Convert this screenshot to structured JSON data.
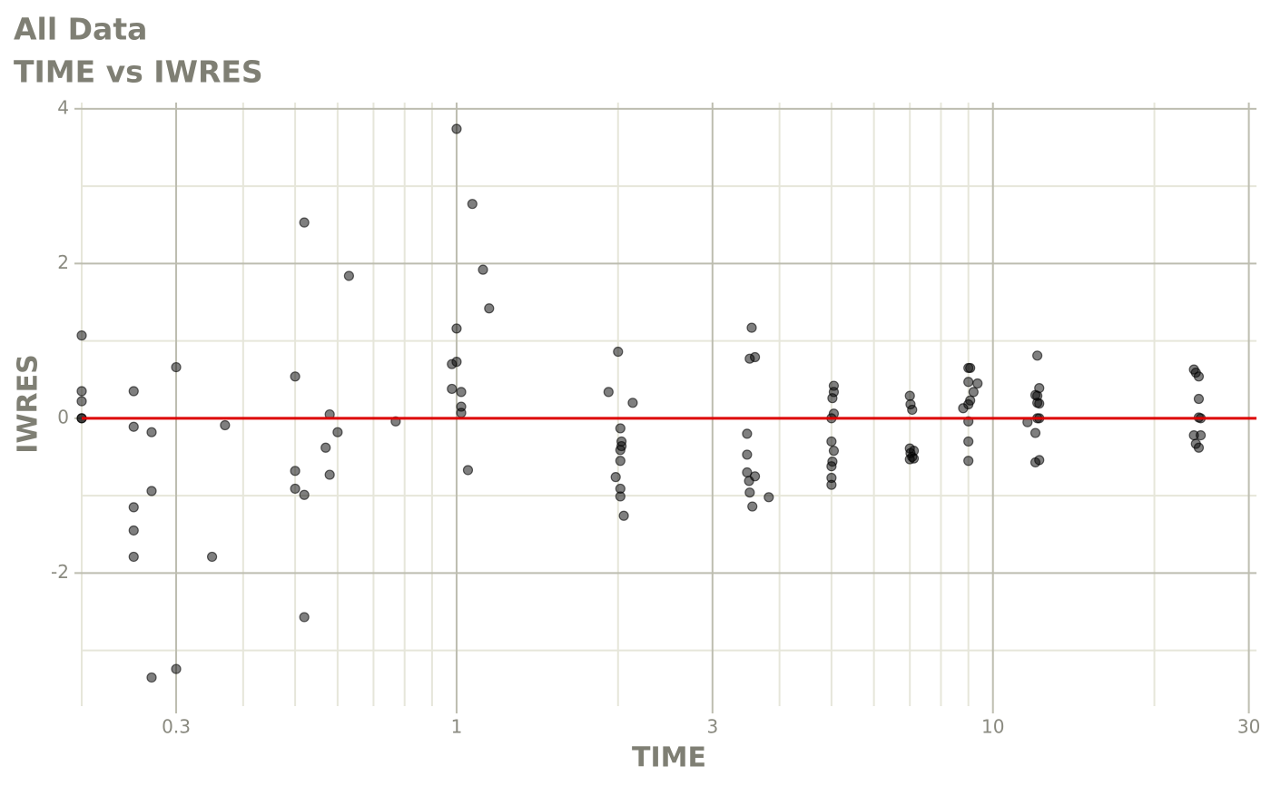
{
  "chart_data": {
    "type": "scatter",
    "title": "All Data",
    "subtitle": "TIME vs IWRES",
    "x_label": "TIME",
    "y_label": "IWRES",
    "log_x": true,
    "grid": true,
    "minor_grid": true,
    "color": "#000000",
    "hline": 0,
    "hline_color": "#dd0000",
    "xlim": [
      0.2,
      31
    ],
    "xticks": [
      0.3,
      1,
      3,
      10,
      30
    ],
    "ylim": [
      -3.72,
      4.08
    ],
    "yticks": [
      -2,
      0,
      2,
      4
    ],
    "x": [
      0.2,
      0.2,
      0.2,
      0.2,
      0.2,
      0.25,
      0.25,
      0.25,
      0.25,
      0.25,
      0.27,
      0.27,
      0.27,
      0.3,
      0.3,
      0.35,
      0.37,
      0.5,
      0.5,
      0.5,
      0.52,
      0.52,
      0.52,
      0.57,
      0.58,
      0.58,
      0.6,
      0.63,
      0.77,
      0.98,
      0.98,
      1.0,
      1.0,
      1.0,
      1.02,
      1.02,
      1.02,
      1.05,
      1.07,
      1.12,
      1.15,
      1.92,
      1.98,
      2.0,
      2.02,
      2.02,
      2.02,
      2.02,
      2.02,
      2.03,
      2.03,
      2.05,
      2.13,
      3.48,
      3.48,
      3.48,
      3.51,
      3.52,
      3.52,
      3.55,
      3.56,
      3.6,
      3.6,
      3.82,
      5.0,
      5.0,
      5.0,
      5.0,
      5.0,
      5.02,
      5.02,
      5.05,
      5.05,
      5.05,
      5.05,
      7.0,
      7.0,
      7.0,
      7.02,
      7.02,
      7.07,
      7.07,
      7.12,
      7.12,
      8.8,
      9.0,
      9.0,
      9.0,
      9.0,
      9.0,
      9.0,
      9.07,
      9.07,
      9.2,
      9.36,
      11.6,
      12.0,
      12.0,
      12.0,
      12.1,
      12.1,
      12.1,
      12.1,
      12.2,
      12.2,
      12.2,
      12.2,
      23.7,
      23.7,
      23.9,
      23.9,
      24.2,
      24.2,
      24.2,
      24.2,
      24.4,
      24.4
    ],
    "values": [
      1.07,
      0.35,
      0.22,
      0,
      0,
      0.35,
      -0.11,
      -1.15,
      -1.45,
      -1.79,
      -0.18,
      -0.94,
      -3.35,
      0.66,
      -3.24,
      -1.79,
      -0.09,
      0.54,
      -0.68,
      -0.91,
      2.53,
      -0.99,
      -2.57,
      -0.38,
      0.05,
      -0.73,
      -0.18,
      1.84,
      -0.04,
      0.7,
      0.38,
      3.74,
      1.16,
      0.73,
      0.34,
      0.15,
      0.07,
      -0.67,
      2.77,
      1.92,
      1.42,
      0.34,
      -0.76,
      0.86,
      -0.13,
      -0.41,
      -0.55,
      -0.91,
      -1.01,
      -0.3,
      -0.36,
      -1.26,
      0.2,
      -0.2,
      -0.47,
      -0.7,
      -0.81,
      0.77,
      -0.96,
      1.17,
      -1.14,
      0.79,
      -0.75,
      -1.02,
      0,
      -0.3,
      -0.62,
      -0.77,
      -0.86,
      0.26,
      -0.56,
      0.42,
      0.34,
      0.06,
      -0.42,
      0.29,
      -0.39,
      -0.53,
      0.18,
      -0.45,
      0.11,
      -0.5,
      -0.42,
      -0.52,
      0.13,
      0.65,
      0.47,
      0.18,
      -0.04,
      -0.3,
      -0.55,
      0.65,
      0.23,
      0.34,
      0.45,
      -0.05,
      0.3,
      -0.19,
      -0.57,
      0.81,
      0.29,
      0.2,
      0,
      0.39,
      0.19,
      0,
      -0.54,
      0.63,
      -0.22,
      0.59,
      -0.33,
      0.54,
      0.25,
      0.01,
      -0.38,
      0,
      -0.22
    ]
  }
}
